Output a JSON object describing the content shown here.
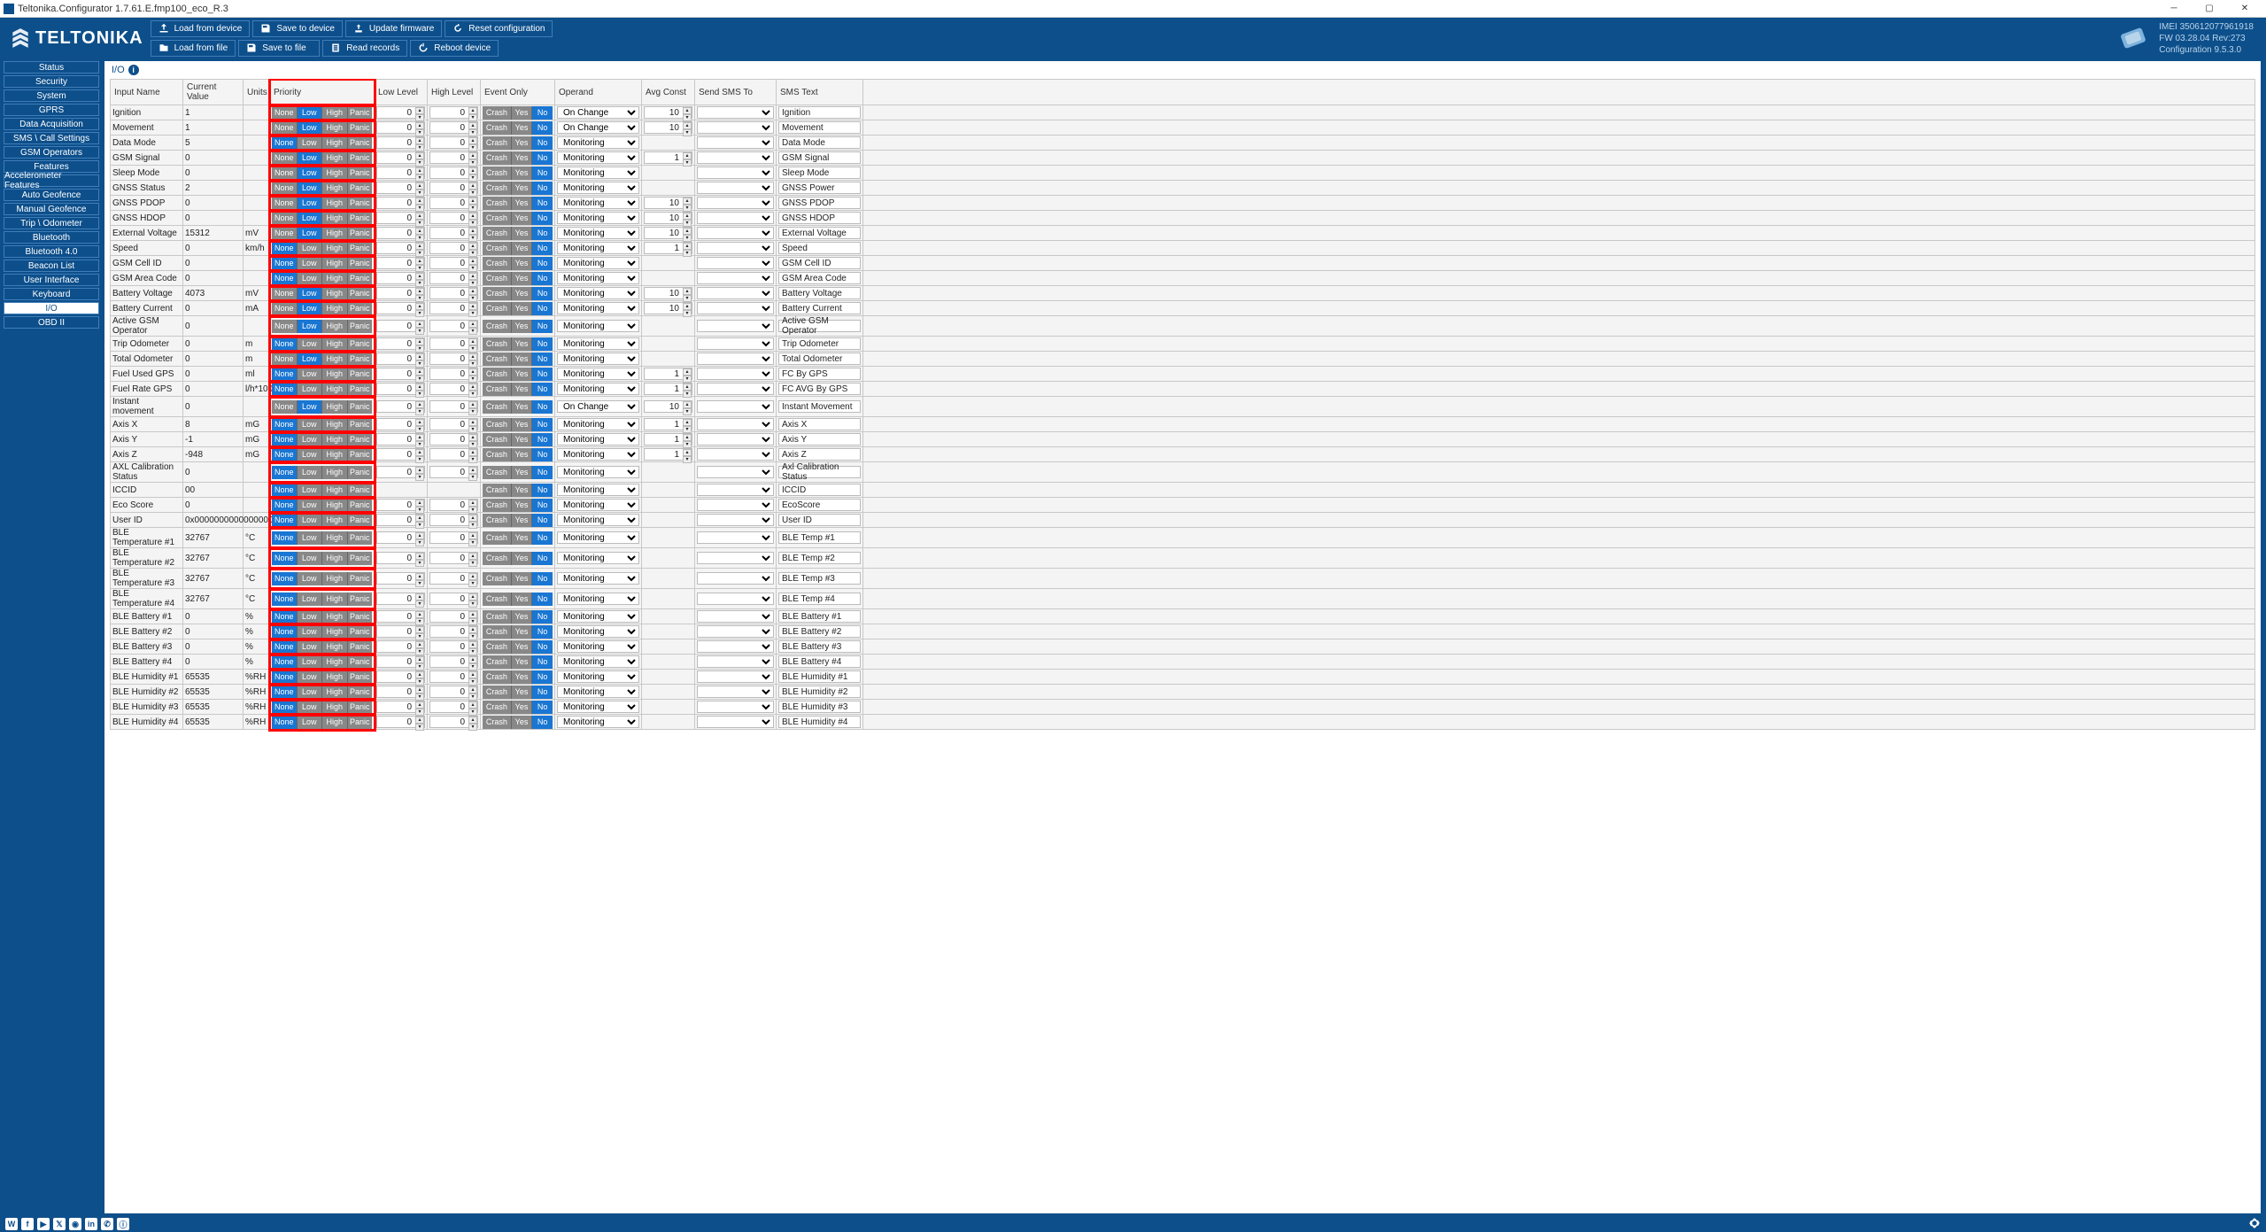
{
  "window_title": "Teltonika.Configurator 1.7.61.E.fmp100_eco_R.3",
  "logo_text": "TELTONIKA",
  "device_info": {
    "imei": "IMEI 350612077961918",
    "fw": "FW 03.28.04 Rev:273",
    "conf": "Configuration 9.5.3.0"
  },
  "toolbar": {
    "load_device": "Load from device",
    "save_device": "Save to device",
    "update_fw": "Update firmware",
    "reset_conf": "Reset configuration",
    "load_file": "Load from file",
    "save_file": "Save to file",
    "read_rec": "Read records",
    "reboot": "Reboot device"
  },
  "nav": [
    "Status",
    "Security",
    "System",
    "GPRS",
    "Data Acquisition",
    "SMS \\ Call Settings",
    "GSM Operators",
    "Features",
    "Accelerometer Features",
    "Auto Geofence",
    "Manual Geofence",
    "Trip \\ Odometer",
    "Bluetooth",
    "Bluetooth 4.0",
    "Beacon List",
    "User Interface",
    "Keyboard",
    "I/O",
    "OBD II"
  ],
  "nav_active": 17,
  "page_heading": "I/O",
  "columns": [
    "Input Name",
    "Current Value",
    "Units",
    "Priority",
    "Low Level",
    "High Level",
    "Event Only",
    "Operand",
    "Avg Const",
    "Send SMS To",
    "SMS Text"
  ],
  "prio_labels": [
    "None",
    "Low",
    "High",
    "Panic"
  ],
  "evt_labels": [
    "Crash",
    "Yes",
    "No"
  ],
  "rows": [
    {
      "name": "Ignition",
      "val": "1",
      "units": "",
      "prio": 1,
      "low": "0",
      "high": "0",
      "evt": 2,
      "oper": "On Change",
      "avg": "10",
      "sms": "",
      "smstxt": "Ignition"
    },
    {
      "name": "Movement",
      "val": "1",
      "units": "",
      "prio": 1,
      "low": "0",
      "high": "0",
      "evt": 2,
      "oper": "On Change",
      "avg": "10",
      "sms": "",
      "smstxt": "Movement"
    },
    {
      "name": "Data Mode",
      "val": "5",
      "units": "",
      "prio": 0,
      "low": "0",
      "high": "0",
      "evt": 2,
      "oper": "Monitoring",
      "avg": "",
      "sms": "",
      "smstxt": "Data Mode"
    },
    {
      "name": "GSM Signal",
      "val": "0",
      "units": "",
      "prio": 1,
      "low": "0",
      "high": "0",
      "evt": 2,
      "oper": "Monitoring",
      "avg": "1",
      "sms": "",
      "smstxt": "GSM Signal"
    },
    {
      "name": "Sleep Mode",
      "val": "0",
      "units": "",
      "prio": 1,
      "low": "0",
      "high": "0",
      "evt": 2,
      "oper": "Monitoring",
      "avg": "",
      "sms": "",
      "smstxt": "Sleep Mode"
    },
    {
      "name": "GNSS Status",
      "val": "2",
      "units": "",
      "prio": 1,
      "low": "0",
      "high": "0",
      "evt": 2,
      "oper": "Monitoring",
      "avg": "",
      "sms": "",
      "smstxt": "GNSS Power"
    },
    {
      "name": "GNSS PDOP",
      "val": "0",
      "units": "",
      "prio": 1,
      "low": "0",
      "high": "0",
      "evt": 2,
      "oper": "Monitoring",
      "avg": "10",
      "sms": "",
      "smstxt": "GNSS PDOP"
    },
    {
      "name": "GNSS HDOP",
      "val": "0",
      "units": "",
      "prio": 1,
      "low": "0",
      "high": "0",
      "evt": 2,
      "oper": "Monitoring",
      "avg": "10",
      "sms": "",
      "smstxt": "GNSS HDOP"
    },
    {
      "name": "External Voltage",
      "val": "15312",
      "units": "mV",
      "prio": 1,
      "low": "0",
      "high": "0",
      "evt": 2,
      "oper": "Monitoring",
      "avg": "10",
      "sms": "",
      "smstxt": "External Voltage"
    },
    {
      "name": "Speed",
      "val": "0",
      "units": "km/h",
      "prio": 0,
      "low": "0",
      "high": "0",
      "evt": 2,
      "oper": "Monitoring",
      "avg": "1",
      "sms": "",
      "smstxt": "Speed"
    },
    {
      "name": "GSM Cell ID",
      "val": "0",
      "units": "",
      "prio": 0,
      "low": "0",
      "high": "0",
      "evt": 2,
      "oper": "Monitoring",
      "avg": "",
      "sms": "",
      "smstxt": "GSM Cell ID"
    },
    {
      "name": "GSM Area Code",
      "val": "0",
      "units": "",
      "prio": 0,
      "low": "0",
      "high": "0",
      "evt": 2,
      "oper": "Monitoring",
      "avg": "",
      "sms": "",
      "smstxt": "GSM Area Code"
    },
    {
      "name": "Battery Voltage",
      "val": "4073",
      "units": "mV",
      "prio": 1,
      "low": "0",
      "high": "0",
      "evt": 2,
      "oper": "Monitoring",
      "avg": "10",
      "sms": "",
      "smstxt": "Battery Voltage"
    },
    {
      "name": "Battery Current",
      "val": "0",
      "units": "mA",
      "prio": 1,
      "low": "0",
      "high": "0",
      "evt": 2,
      "oper": "Monitoring",
      "avg": "10",
      "sms": "",
      "smstxt": "Battery Current"
    },
    {
      "name": "Active GSM Operator",
      "val": "0",
      "units": "",
      "prio": 1,
      "low": "0",
      "high": "0",
      "evt": 2,
      "oper": "Monitoring",
      "avg": "",
      "sms": "",
      "smstxt": "Active GSM Operator"
    },
    {
      "name": "Trip Odometer",
      "val": "0",
      "units": "m",
      "prio": 0,
      "low": "0",
      "high": "0",
      "evt": 2,
      "oper": "Monitoring",
      "avg": "",
      "sms": "",
      "smstxt": "Trip Odometer"
    },
    {
      "name": "Total Odometer",
      "val": "0",
      "units": "m",
      "prio": 1,
      "low": "0",
      "high": "0",
      "evt": 2,
      "oper": "Monitoring",
      "avg": "",
      "sms": "",
      "smstxt": "Total Odometer"
    },
    {
      "name": "Fuel Used GPS",
      "val": "0",
      "units": "ml",
      "prio": 0,
      "low": "0",
      "high": "0",
      "evt": 2,
      "oper": "Monitoring",
      "avg": "1",
      "sms": "",
      "smstxt": "FC By GPS"
    },
    {
      "name": "Fuel Rate GPS",
      "val": "0",
      "units": "l/h*100",
      "prio": 0,
      "low": "0",
      "high": "0",
      "evt": 2,
      "oper": "Monitoring",
      "avg": "1",
      "sms": "",
      "smstxt": "FC AVG By GPS"
    },
    {
      "name": "Instant movement",
      "val": "0",
      "units": "",
      "prio": 1,
      "low": "0",
      "high": "0",
      "evt": 2,
      "oper": "On Change",
      "avg": "10",
      "sms": "",
      "smstxt": "Instant Movement"
    },
    {
      "name": "Axis X",
      "val": "8",
      "units": "mG",
      "prio": 0,
      "low": "0",
      "high": "0",
      "evt": 2,
      "oper": "Monitoring",
      "avg": "1",
      "sms": "",
      "smstxt": "Axis X"
    },
    {
      "name": "Axis Y",
      "val": "-1",
      "units": "mG",
      "prio": 0,
      "low": "0",
      "high": "0",
      "evt": 2,
      "oper": "Monitoring",
      "avg": "1",
      "sms": "",
      "smstxt": "Axis Y"
    },
    {
      "name": "Axis Z",
      "val": "-948",
      "units": "mG",
      "prio": 0,
      "low": "0",
      "high": "0",
      "evt": 2,
      "oper": "Monitoring",
      "avg": "1",
      "sms": "",
      "smstxt": "Axis Z"
    },
    {
      "name": "AXL Calibration Status",
      "val": "0",
      "units": "",
      "prio": 0,
      "low": "0",
      "high": "0",
      "evt": 2,
      "oper": "Monitoring",
      "avg": "",
      "sms": "",
      "smstxt": "Axl Calibration Status"
    },
    {
      "name": "ICCID",
      "val": "00",
      "units": "",
      "prio": 0,
      "low": null,
      "high": null,
      "evt": 2,
      "oper": "Monitoring",
      "avg": "",
      "sms": "",
      "smstxt": "ICCID"
    },
    {
      "name": "Eco Score",
      "val": "0",
      "units": "",
      "prio": 0,
      "low": "0",
      "high": "0",
      "evt": 2,
      "oper": "Monitoring",
      "avg": "",
      "sms": "",
      "smstxt": "EcoScore"
    },
    {
      "name": "User ID",
      "val": "0x0000000000000000",
      "units": "",
      "prio": 0,
      "low": "0",
      "high": "0",
      "evt": 2,
      "oper": "Monitoring",
      "avg": "",
      "sms": "",
      "smstxt": "User ID"
    },
    {
      "name": "BLE Temperature #1",
      "val": "32767",
      "units": "°C",
      "prio": 0,
      "low": "0",
      "high": "0",
      "evt": 2,
      "oper": "Monitoring",
      "avg": "",
      "sms": "",
      "smstxt": "BLE Temp #1"
    },
    {
      "name": "BLE Temperature #2",
      "val": "32767",
      "units": "°C",
      "prio": 0,
      "low": "0",
      "high": "0",
      "evt": 2,
      "oper": "Monitoring",
      "avg": "",
      "sms": "",
      "smstxt": "BLE Temp #2"
    },
    {
      "name": "BLE Temperature #3",
      "val": "32767",
      "units": "°C",
      "prio": 0,
      "low": "0",
      "high": "0",
      "evt": 2,
      "oper": "Monitoring",
      "avg": "",
      "sms": "",
      "smstxt": "BLE Temp #3"
    },
    {
      "name": "BLE Temperature #4",
      "val": "32767",
      "units": "°C",
      "prio": 0,
      "low": "0",
      "high": "0",
      "evt": 2,
      "oper": "Monitoring",
      "avg": "",
      "sms": "",
      "smstxt": "BLE Temp #4"
    },
    {
      "name": "BLE Battery #1",
      "val": "0",
      "units": "%",
      "prio": 0,
      "low": "0",
      "high": "0",
      "evt": 2,
      "oper": "Monitoring",
      "avg": "",
      "sms": "",
      "smstxt": "BLE Battery #1"
    },
    {
      "name": "BLE Battery #2",
      "val": "0",
      "units": "%",
      "prio": 0,
      "low": "0",
      "high": "0",
      "evt": 2,
      "oper": "Monitoring",
      "avg": "",
      "sms": "",
      "smstxt": "BLE Battery #2"
    },
    {
      "name": "BLE Battery #3",
      "val": "0",
      "units": "%",
      "prio": 0,
      "low": "0",
      "high": "0",
      "evt": 2,
      "oper": "Monitoring",
      "avg": "",
      "sms": "",
      "smstxt": "BLE Battery #3"
    },
    {
      "name": "BLE Battery #4",
      "val": "0",
      "units": "%",
      "prio": 0,
      "low": "0",
      "high": "0",
      "evt": 2,
      "oper": "Monitoring",
      "avg": "",
      "sms": "",
      "smstxt": "BLE Battery #4"
    },
    {
      "name": "BLE Humidity #1",
      "val": "65535",
      "units": "%RH",
      "prio": 0,
      "low": "0",
      "high": "0",
      "evt": 2,
      "oper": "Monitoring",
      "avg": "",
      "sms": "",
      "smstxt": "BLE Humidity #1"
    },
    {
      "name": "BLE Humidity #2",
      "val": "65535",
      "units": "%RH",
      "prio": 0,
      "low": "0",
      "high": "0",
      "evt": 2,
      "oper": "Monitoring",
      "avg": "",
      "sms": "",
      "smstxt": "BLE Humidity #2"
    },
    {
      "name": "BLE Humidity #3",
      "val": "65535",
      "units": "%RH",
      "prio": 0,
      "low": "0",
      "high": "0",
      "evt": 2,
      "oper": "Monitoring",
      "avg": "",
      "sms": "",
      "smstxt": "BLE Humidity #3"
    },
    {
      "name": "BLE Humidity #4",
      "val": "65535",
      "units": "%RH",
      "prio": 0,
      "low": "0",
      "high": "0",
      "evt": 2,
      "oper": "Monitoring",
      "avg": "",
      "sms": "",
      "smstxt": "BLE Humidity #4"
    }
  ],
  "social": [
    "W",
    "f",
    "▶",
    "𝕏",
    "◉",
    "in",
    "✆",
    "ⓘ"
  ]
}
